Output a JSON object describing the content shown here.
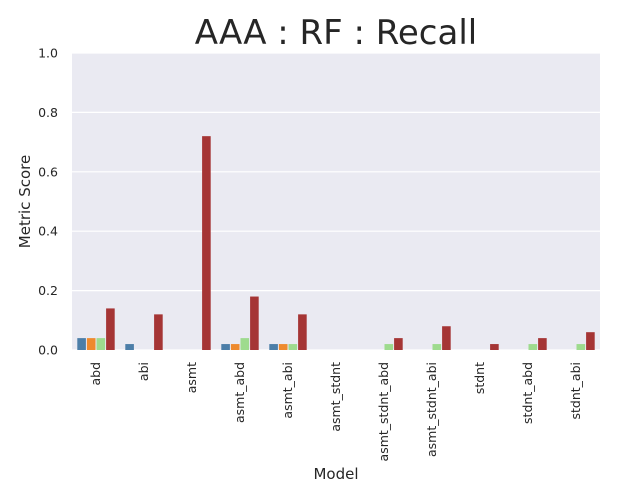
{
  "chart_data": {
    "type": "bar",
    "title": "AAA : RF : Recall",
    "xlabel": "Model",
    "ylabel": "Metric Score",
    "ylim": [
      0.0,
      1.0
    ],
    "yticks": [
      "0.0",
      "0.2",
      "0.4",
      "0.6",
      "0.8",
      "1.0"
    ],
    "grid": true,
    "legend": "none",
    "categories": [
      "abd",
      "abi",
      "asmt",
      "asmt_abd",
      "asmt_abi",
      "asmt_stdnt",
      "asmt_stdnt_abd",
      "asmt_stdnt_abi",
      "stdnt",
      "stdnt_abd",
      "stdnt_abi"
    ],
    "series": [
      {
        "color": "#4c7ea8",
        "values": [
          0.04,
          0.02,
          0.0,
          0.02,
          0.02,
          0.0,
          0.0,
          0.0,
          0.0,
          0.0,
          0.0
        ]
      },
      {
        "color": "#ee8a2e",
        "values": [
          0.04,
          0.0,
          0.0,
          0.02,
          0.02,
          0.0,
          0.0,
          0.0,
          0.0,
          0.0,
          0.0
        ]
      },
      {
        "color": "#9edb8e",
        "values": [
          0.04,
          0.0,
          0.0,
          0.04,
          0.02,
          0.0,
          0.02,
          0.02,
          0.0,
          0.02,
          0.02
        ]
      },
      {
        "color": "#a53535",
        "values": [
          0.14,
          0.12,
          0.72,
          0.18,
          0.12,
          0.0,
          0.04,
          0.08,
          0.02,
          0.04,
          0.06
        ]
      }
    ],
    "colors": {
      "plot_background": "#eaeaf2",
      "grid": "#ffffff",
      "text": "#262626"
    }
  }
}
